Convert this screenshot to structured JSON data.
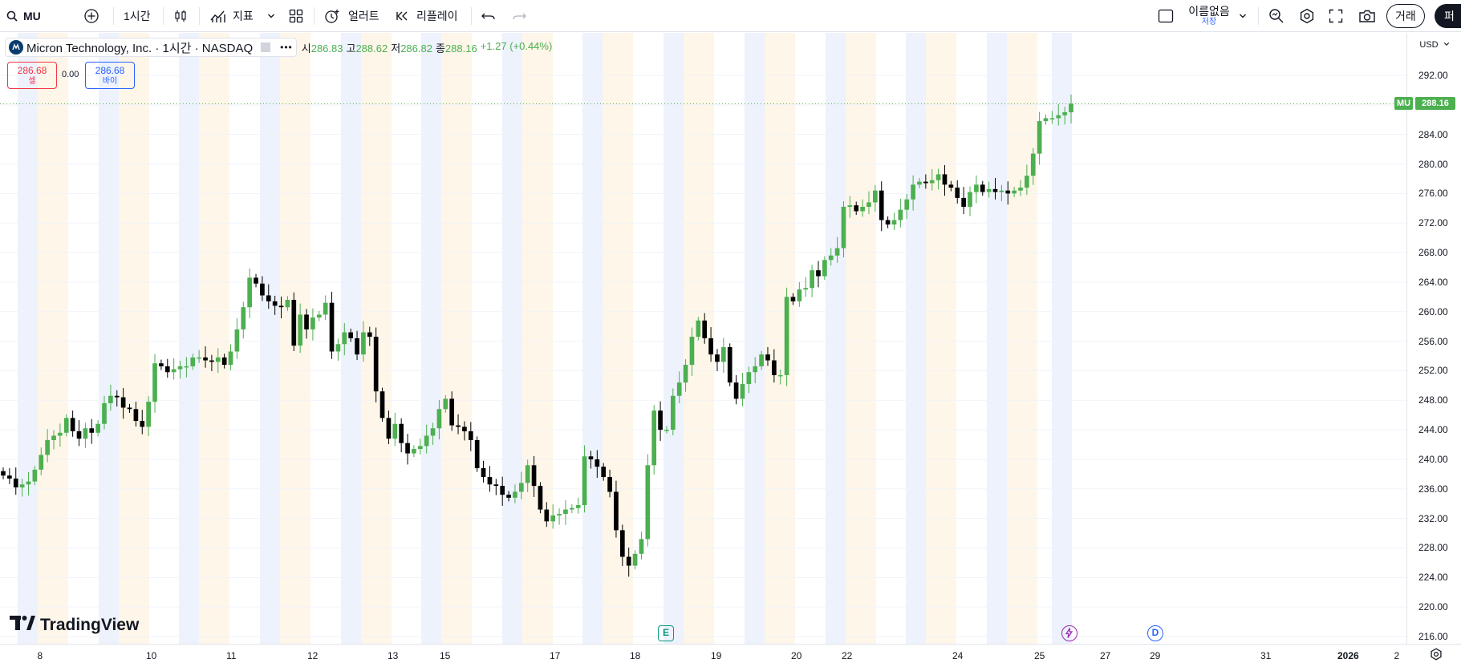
{
  "toolbar": {
    "symbol": "MU",
    "interval": "1시간",
    "indicators_label": "지표",
    "alert_label": "얼러트",
    "replay_label": "리플레이",
    "layout_name": "이름없음",
    "layout_save": "저장",
    "trade_label": "거래",
    "publish_label": "퍼블"
  },
  "legend": {
    "title": "Micron Technology, Inc. · 1시간 · NASDAQ",
    "open_k": "시",
    "open_v": "286.83",
    "high_k": "고",
    "high_v": "288.62",
    "low_k": "저",
    "low_v": "286.82",
    "close_k": "종",
    "close_v": "288.16",
    "change": "+1.27 (+0.44%)"
  },
  "trade": {
    "sell_price": "286.68",
    "sell_label": "셀",
    "spread": "0.00",
    "buy_price": "286.68",
    "buy_label": "바이"
  },
  "price_axis": {
    "currency": "USD",
    "symbol_tag": "MU",
    "last_price": "288.16",
    "ticks": [
      "292.00",
      "288.00",
      "284.00",
      "280.00",
      "276.00",
      "272.00",
      "268.00",
      "264.00",
      "260.00",
      "256.00",
      "252.00",
      "248.00",
      "244.00",
      "240.00",
      "236.00",
      "232.00",
      "228.00",
      "224.00",
      "220.00",
      "216.00"
    ]
  },
  "time_axis": {
    "labels": [
      "8",
      "10",
      "11",
      "12",
      "13",
      "15",
      "17",
      "18",
      "19",
      "20",
      "22",
      "24",
      "25",
      "27",
      "29",
      "31",
      "2026",
      "2"
    ]
  },
  "events": {
    "earnings": "E",
    "dividend": "D"
  },
  "brand": {
    "name": "TradingView"
  },
  "colors": {
    "up": "#4caf50",
    "down": "#000000",
    "premarket": "#fef6e9",
    "postmarket": "#edf2fd",
    "accent": "#2962ff"
  },
  "chart_data": {
    "type": "candlestick",
    "symbol": "MU",
    "interval": "1시간",
    "ylim": [
      214,
      296
    ],
    "last": 288.16,
    "close_series": [
      237.8,
      237.4,
      236.2,
      236.6,
      237,
      238.6,
      240.6,
      242.6,
      243.2,
      243.6,
      245.6,
      243.8,
      242.8,
      244.2,
      243.6,
      244.8,
      247.6,
      248.6,
      248.4,
      247,
      246.8,
      245.2,
      244.4,
      247.8,
      253,
      252.6,
      251.8,
      252.2,
      252.6,
      252.6,
      253.8,
      253.8,
      253.4,
      253.2,
      253.8,
      252.8,
      254.6,
      257.6,
      260.6,
      264.6,
      263.8,
      262.2,
      261.4,
      260.8,
      260.6,
      261.6,
      255.4,
      259.6,
      257.6,
      259.2,
      259.6,
      261.2,
      254.6,
      255.6,
      257.2,
      256.4,
      254.2,
      257.2,
      256.6,
      249.2,
      245.6,
      242.8,
      244.8,
      242.2,
      240.8,
      241.4,
      241.8,
      243.2,
      244.2,
      246.8,
      248.2,
      244.6,
      244.4,
      243.8,
      242.6,
      238.8,
      237.6,
      236.6,
      236.4,
      235.2,
      234.8,
      235.6,
      236.8,
      239.2,
      236.4,
      233.2,
      231.6,
      232.4,
      232.6,
      233.2,
      233.4,
      233.8,
      240.4,
      240,
      239,
      237.6,
      235.6,
      230.4,
      226.8,
      225.6,
      227.2,
      229.2,
      239.2,
      246.6,
      244,
      244,
      248.6,
      250.4,
      252.8,
      256.6,
      258.8,
      256.4,
      254.2,
      253.2,
      255.2,
      250.4,
      248.2,
      250.2,
      251.8,
      252.6,
      254.2,
      253.4,
      251.4,
      251.4,
      262,
      261.4,
      263,
      263.2,
      265.6,
      264.8,
      267,
      267.6,
      268.6,
      274.2,
      274.4,
      273.6,
      274.2,
      274.8,
      276.4,
      272.4,
      271.8,
      272.4,
      273.8,
      275.2,
      277.2,
      277.6,
      277.4,
      277.8,
      278.6,
      277.2,
      276.8,
      275.4,
      274.2,
      276.2,
      277.2,
      276.2,
      276.6,
      276.2,
      276.4,
      276,
      276.4,
      276.8,
      278.4,
      281.4,
      285.8,
      286.2,
      286.2,
      286.6,
      287,
      288.16
    ]
  }
}
